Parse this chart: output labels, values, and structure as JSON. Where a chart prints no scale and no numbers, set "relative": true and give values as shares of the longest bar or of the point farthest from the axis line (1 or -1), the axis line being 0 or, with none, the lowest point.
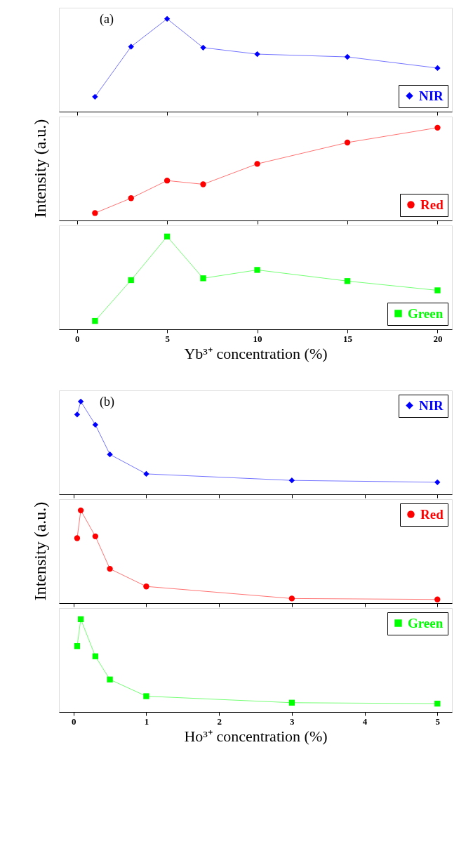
{
  "chart_data": [
    {
      "type": "line",
      "marker": "diamond",
      "relative": true,
      "x": [
        1,
        3,
        5,
        7,
        10,
        15,
        20
      ],
      "xlim": [
        -1,
        20.8
      ],
      "xticks": [
        0,
        5,
        10,
        15,
        20
      ],
      "tick_labels": false,
      "legend": "bottom right",
      "annotations": [
        "(a)"
      ],
      "series": [
        {
          "name": "NIR",
          "color": "#0000ff",
          "values": [
            0.16,
            0.7,
            1,
            0.69,
            0.62,
            0.59,
            0.47
          ]
        }
      ]
    },
    {
      "type": "line",
      "marker": "circle",
      "relative": true,
      "x": [
        1,
        3,
        5,
        7,
        10,
        15,
        20
      ],
      "xlim": [
        -1,
        20.8
      ],
      "xticks": [
        0,
        5,
        10,
        15,
        20
      ],
      "tick_labels": false,
      "legend": "bottom right",
      "ylabel": "Intensity (a.u.)",
      "series": [
        {
          "name": "Red",
          "color": "#ff0000",
          "values": [
            0.08,
            0.24,
            0.43,
            0.39,
            0.61,
            0.84,
            1
          ]
        }
      ]
    },
    {
      "type": "line",
      "marker": "square",
      "relative": true,
      "x": [
        1,
        3,
        5,
        7,
        10,
        15,
        20
      ],
      "xlim": [
        -1,
        20.8
      ],
      "xticks": [
        0,
        5,
        10,
        15,
        20
      ],
      "tick_labels": "x",
      "legend": "bottom right",
      "xlabel": "Yb³⁺ concentration (%)",
      "series": [
        {
          "name": "Green",
          "color": "#00ff00",
          "values": [
            0.09,
            0.53,
            1,
            0.55,
            0.64,
            0.52,
            0.42
          ]
        }
      ]
    },
    {
      "type": "line",
      "marker": "diamond",
      "relative": true,
      "x": [
        0.05,
        0.1,
        0.3,
        0.5,
        1,
        3,
        5
      ],
      "xlim": [
        -0.2,
        5.2
      ],
      "xticks": [
        0,
        1,
        2,
        3,
        4,
        5
      ],
      "tick_labels": false,
      "legend": "top right",
      "annotations": [
        "(b)"
      ],
      "series": [
        {
          "name": "NIR",
          "color": "#0000ff",
          "values": [
            0.86,
            1,
            0.75,
            0.43,
            0.22,
            0.15,
            0.13
          ]
        }
      ]
    },
    {
      "type": "line",
      "marker": "circle",
      "relative": true,
      "x": [
        0.05,
        0.1,
        0.3,
        0.5,
        1,
        3,
        5
      ],
      "xlim": [
        -0.2,
        5.2
      ],
      "xticks": [
        0,
        1,
        2,
        3,
        4,
        5
      ],
      "tick_labels": false,
      "legend": "top right",
      "ylabel": "Intensity (a.u.)",
      "series": [
        {
          "name": "Red",
          "color": "#ff0000",
          "values": [
            0.7,
            1,
            0.72,
            0.37,
            0.18,
            0.05,
            0.04
          ]
        }
      ]
    },
    {
      "type": "line",
      "marker": "square",
      "relative": true,
      "x": [
        0.05,
        0.1,
        0.3,
        0.5,
        1,
        3,
        5
      ],
      "xlim": [
        -0.2,
        5.2
      ],
      "xticks": [
        0,
        1,
        2,
        3,
        4,
        5
      ],
      "tick_labels": "x",
      "legend": "top right",
      "xlabel": "Ho³⁺ concentration (%)",
      "series": [
        {
          "name": "Green",
          "color": "#00ff00",
          "values": [
            0.71,
            1,
            0.6,
            0.35,
            0.17,
            0.1,
            0.09
          ]
        }
      ]
    }
  ]
}
